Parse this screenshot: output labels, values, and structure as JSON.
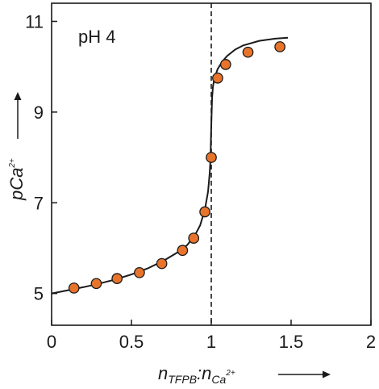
{
  "chart_data": {
    "type": "scatter",
    "annotation": "pH 4",
    "xlabel": {
      "main": "n",
      "sub1": "TFPB",
      "sep": ":n",
      "sub2": "Ca",
      "sup2": "2+"
    },
    "ylabel": {
      "main": "pCa",
      "sup": "2+"
    },
    "xlim": [
      0,
      2
    ],
    "ylim": [
      4.3,
      11.4
    ],
    "xticks": [
      0,
      0.5,
      1,
      1.5,
      2
    ],
    "xtick_labels": [
      "0",
      "0.5",
      "1",
      "1.5",
      "2"
    ],
    "yticks": [
      5,
      7,
      9,
      11
    ],
    "ytick_labels": [
      "5",
      "7",
      "9",
      "11"
    ],
    "reference_line_x": 1,
    "grid": false,
    "colors": {
      "marker_fill": "#e8742c",
      "marker_edge": "#1a1a1a",
      "line": "#1a1a1a"
    },
    "points": [
      {
        "x": 0.14,
        "y": 5.12
      },
      {
        "x": 0.28,
        "y": 5.22
      },
      {
        "x": 0.41,
        "y": 5.33
      },
      {
        "x": 0.55,
        "y": 5.46
      },
      {
        "x": 0.69,
        "y": 5.66
      },
      {
        "x": 0.82,
        "y": 5.95
      },
      {
        "x": 0.89,
        "y": 6.22
      },
      {
        "x": 0.96,
        "y": 6.8
      },
      {
        "x": 1.0,
        "y": 8.0
      },
      {
        "x": 1.04,
        "y": 9.75
      },
      {
        "x": 1.09,
        "y": 10.05
      },
      {
        "x": 1.23,
        "y": 10.32
      },
      {
        "x": 1.43,
        "y": 10.44
      }
    ],
    "fit_curve": [
      {
        "x": 0.0,
        "y": 5.0
      },
      {
        "x": 0.1,
        "y": 5.07
      },
      {
        "x": 0.2,
        "y": 5.14
      },
      {
        "x": 0.3,
        "y": 5.22
      },
      {
        "x": 0.4,
        "y": 5.31
      },
      {
        "x": 0.5,
        "y": 5.42
      },
      {
        "x": 0.6,
        "y": 5.55
      },
      {
        "x": 0.7,
        "y": 5.72
      },
      {
        "x": 0.8,
        "y": 5.93
      },
      {
        "x": 0.85,
        "y": 6.07
      },
      {
        "x": 0.9,
        "y": 6.3
      },
      {
        "x": 0.93,
        "y": 6.5
      },
      {
        "x": 0.96,
        "y": 6.85
      },
      {
        "x": 0.98,
        "y": 7.25
      },
      {
        "x": 0.99,
        "y": 7.65
      },
      {
        "x": 0.995,
        "y": 7.95
      },
      {
        "x": 1.0,
        "y": 8.7
      },
      {
        "x": 1.005,
        "y": 9.3
      },
      {
        "x": 1.01,
        "y": 9.55
      },
      {
        "x": 1.02,
        "y": 9.75
      },
      {
        "x": 1.04,
        "y": 9.95
      },
      {
        "x": 1.07,
        "y": 10.12
      },
      {
        "x": 1.1,
        "y": 10.24
      },
      {
        "x": 1.15,
        "y": 10.38
      },
      {
        "x": 1.2,
        "y": 10.47
      },
      {
        "x": 1.3,
        "y": 10.57
      },
      {
        "x": 1.4,
        "y": 10.62
      },
      {
        "x": 1.48,
        "y": 10.64
      }
    ]
  }
}
